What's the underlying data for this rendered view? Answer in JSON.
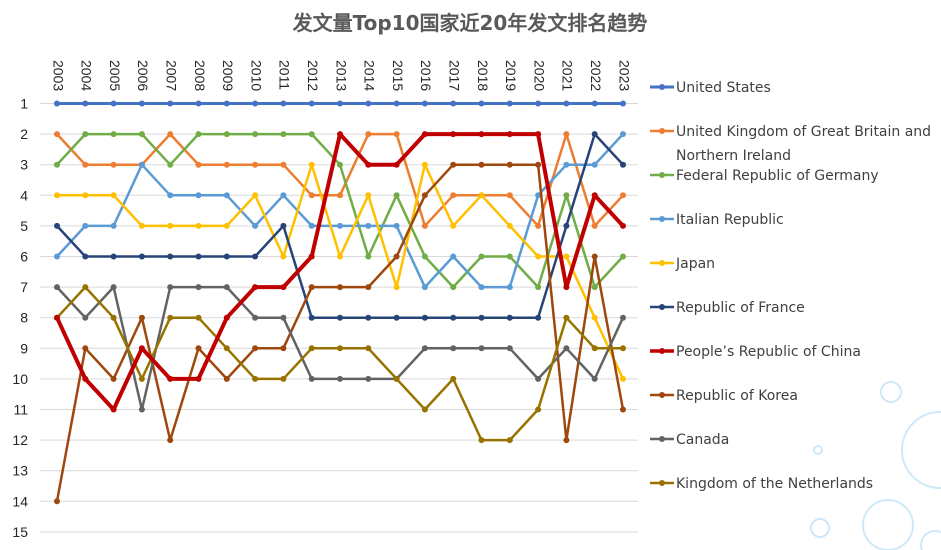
{
  "chart_data": {
    "type": "line",
    "title": "发文量Top10国家近20年发文排名趋势",
    "x": [
      "2003",
      "2004",
      "2005",
      "2006",
      "2007",
      "2008",
      "2009",
      "2010",
      "2011",
      "2012",
      "2013",
      "2014",
      "2015",
      "2016",
      "2017",
      "2018",
      "2019",
      "2020",
      "2021",
      "2022",
      "2023"
    ],
    "ylim": [
      1,
      15
    ],
    "y_reversed": true,
    "y_ticks": [
      "1",
      "2",
      "3",
      "4",
      "5",
      "6",
      "7",
      "8",
      "9",
      "10",
      "11",
      "12",
      "13",
      "14",
      "15"
    ],
    "grid": true,
    "legend_position": "right",
    "series": [
      {
        "name": "United States",
        "color": "#4472C4",
        "width": 3,
        "values": [
          1,
          1,
          1,
          1,
          1,
          1,
          1,
          1,
          1,
          1,
          1,
          1,
          1,
          1,
          1,
          1,
          1,
          1,
          1,
          1,
          1
        ]
      },
      {
        "name": "United Kingdom of Great Britain and Northern Ireland",
        "color": "#ED7D31",
        "width": 2.5,
        "values": [
          2,
          3,
          3,
          3,
          2,
          3,
          3,
          3,
          3,
          4,
          4,
          2,
          2,
          5,
          4,
          4,
          4,
          5,
          2,
          5,
          4
        ]
      },
      {
        "name": "Federal Republic of Germany",
        "color": "#70AD47",
        "width": 2.5,
        "values": [
          3,
          2,
          2,
          2,
          3,
          2,
          2,
          2,
          2,
          2,
          3,
          6,
          4,
          6,
          7,
          6,
          6,
          7,
          4,
          7,
          6
        ]
      },
      {
        "name": "Italian Republic",
        "color": "#5B9BD5",
        "width": 2.5,
        "values": [
          6,
          5,
          5,
          3,
          4,
          4,
          4,
          5,
          4,
          5,
          5,
          5,
          5,
          7,
          6,
          7,
          7,
          4,
          3,
          3,
          2
        ]
      },
      {
        "name": "Japan",
        "color": "#FFC000",
        "width": 2.5,
        "values": [
          4,
          4,
          4,
          5,
          5,
          5,
          5,
          4,
          6,
          3,
          6,
          4,
          7,
          3,
          5,
          4,
          5,
          6,
          6,
          8,
          10
        ]
      },
      {
        "name": "Republic of France",
        "color": "#264478",
        "width": 2.5,
        "values": [
          5,
          6,
          6,
          6,
          6,
          6,
          6,
          6,
          5,
          8,
          8,
          8,
          8,
          8,
          8,
          8,
          8,
          8,
          5,
          2,
          3
        ]
      },
      {
        "name": "People’s Republic of China",
        "color": "#C00000",
        "width": 4,
        "values": [
          8,
          10,
          11,
          9,
          10,
          10,
          8,
          7,
          7,
          6,
          2,
          3,
          3,
          2,
          2,
          2,
          2,
          2,
          7,
          4,
          5
        ]
      },
      {
        "name": "Republic of Korea",
        "color": "#9E480E",
        "width": 2.5,
        "values": [
          14,
          9,
          10,
          8,
          12,
          9,
          10,
          9,
          9,
          7,
          7,
          7,
          6,
          4,
          3,
          3,
          3,
          3,
          12,
          6,
          11
        ]
      },
      {
        "name": "Canada",
        "color": "#636363",
        "width": 2.5,
        "values": [
          7,
          8,
          7,
          11,
          7,
          7,
          7,
          8,
          8,
          10,
          10,
          10,
          10,
          9,
          9,
          9,
          9,
          10,
          9,
          10,
          8
        ]
      },
      {
        "name": "Kingdom of the Netherlands",
        "color": "#997300",
        "width": 2.5,
        "values": [
          8,
          7,
          8,
          10,
          8,
          8,
          9,
          10,
          10,
          9,
          9,
          9,
          10,
          11,
          10,
          12,
          12,
          11,
          8,
          9,
          9
        ]
      }
    ]
  }
}
